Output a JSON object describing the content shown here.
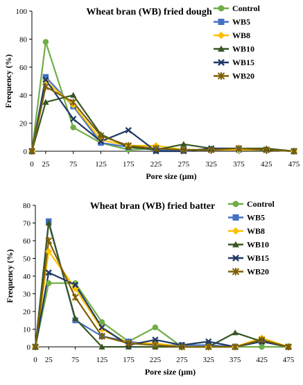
{
  "chart_data": [
    {
      "type": "line",
      "title": "Wheat bran (WB) fried dough",
      "xlabel": "Pore size (µm)",
      "ylabel": "Frequency (%)",
      "x": [
        0,
        25,
        75,
        125,
        175,
        225,
        275,
        325,
        375,
        425,
        475
      ],
      "ylim": [
        0,
        100
      ],
      "yticks": [
        0,
        20,
        40,
        60,
        80,
        100
      ],
      "grid": false,
      "legend": "top-right",
      "series": [
        {
          "name": "Control",
          "color": "#70ad47",
          "marker": "circle",
          "values": [
            0,
            78,
            17,
            6,
            1,
            2,
            1,
            1,
            1,
            1,
            0
          ]
        },
        {
          "name": "WB5",
          "color": "#4472c4",
          "marker": "square",
          "values": [
            0,
            53,
            32,
            6,
            3,
            1,
            1,
            1,
            1,
            1,
            0
          ]
        },
        {
          "name": "WB8",
          "color": "#ffc000",
          "marker": "diamond",
          "values": [
            0,
            50,
            33,
            8,
            4,
            4,
            1,
            1,
            1,
            1,
            0
          ]
        },
        {
          "name": "WB10",
          "color": "#375623",
          "marker": "triangle",
          "values": [
            0,
            35,
            40,
            12,
            3,
            1,
            5,
            2,
            2,
            2,
            0
          ]
        },
        {
          "name": "WB15",
          "color": "#1f3864",
          "marker": "x",
          "values": [
            0,
            51,
            23,
            7,
            15,
            0,
            0,
            2,
            2,
            1,
            0
          ]
        },
        {
          "name": "WB20",
          "color": "#7f6000",
          "marker": "star",
          "values": [
            0,
            46,
            35,
            11,
            4,
            2,
            1,
            1,
            2,
            1,
            0
          ]
        }
      ]
    },
    {
      "type": "line",
      "title": "Wheat bran (WB) fried batter",
      "xlabel": "Pore size (µm)",
      "ylabel": "Frequency (%)",
      "x": [
        0,
        25,
        75,
        125,
        175,
        225,
        275,
        325,
        375,
        425,
        475
      ],
      "ylim": [
        0,
        80
      ],
      "yticks": [
        0,
        10,
        20,
        30,
        40,
        50,
        60,
        70,
        80
      ],
      "grid": false,
      "legend": "top-right",
      "series": [
        {
          "name": "Control",
          "color": "#70ad47",
          "marker": "circle",
          "values": [
            0,
            36,
            36,
            14,
            3,
            11,
            0,
            0,
            0,
            0,
            0
          ]
        },
        {
          "name": "WB5",
          "color": "#4472c4",
          "marker": "square",
          "values": [
            0,
            71,
            15,
            6,
            3,
            1,
            1,
            1,
            0,
            3,
            0
          ]
        },
        {
          "name": "WB8",
          "color": "#ffc000",
          "marker": "diamond",
          "values": [
            0,
            54,
            33,
            10,
            2,
            2,
            0,
            0,
            0,
            5,
            0
          ]
        },
        {
          "name": "WB10",
          "color": "#375623",
          "marker": "triangle",
          "values": [
            0,
            70,
            16,
            0,
            0,
            0,
            0,
            0,
            8,
            3,
            0
          ]
        },
        {
          "name": "WB15",
          "color": "#1f3864",
          "marker": "x",
          "values": [
            0,
            42,
            35,
            11,
            1,
            4,
            1,
            3,
            0,
            3,
            0
          ]
        },
        {
          "name": "WB20",
          "color": "#7f6000",
          "marker": "star",
          "values": [
            0,
            60,
            28,
            6,
            2,
            1,
            0,
            0,
            0,
            4,
            0
          ]
        }
      ]
    }
  ]
}
